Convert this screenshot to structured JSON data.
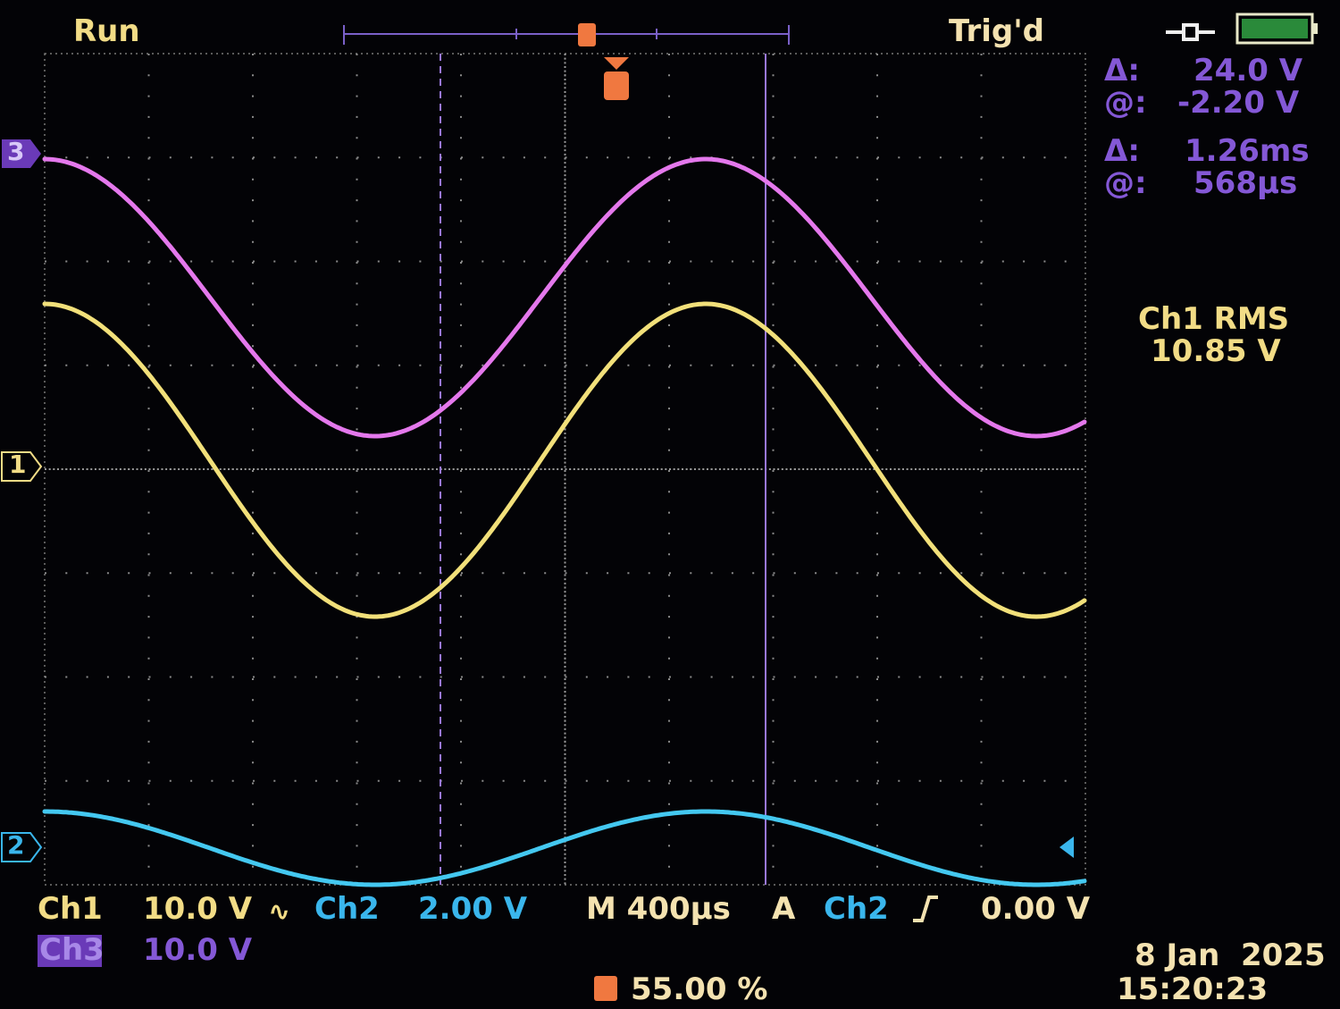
{
  "status": {
    "run": "Run",
    "trigger": "Trig'd"
  },
  "cursor_readout": {
    "amplitude_delta_label": "Δ:",
    "amplitude_delta": "24.0 V",
    "amplitude_at_label": "@:",
    "amplitude_at": "-2.20 V",
    "time_delta_label": "Δ:",
    "time_delta": "1.26ms",
    "time_at_label": "@:",
    "time_at": "568µs"
  },
  "measurement": {
    "label": "Ch1 RMS",
    "value": "10.85 V"
  },
  "channel_markers": [
    "3",
    "1",
    "2"
  ],
  "settings": {
    "ch1_label": "Ch1",
    "ch1_scale": "10.0 V",
    "ch2_label": "Ch2",
    "ch2_scale": "2.00 V",
    "timebase": "M 400µs",
    "trigger_mode": "A",
    "trigger_source": "Ch2",
    "trigger_level": "0.00 V",
    "ch3_label": "Ch3",
    "ch3_scale": "10.0 V",
    "trigger_position": "55.00 %"
  },
  "date": "8 Jan  2025",
  "time": "15:20:23"
}
